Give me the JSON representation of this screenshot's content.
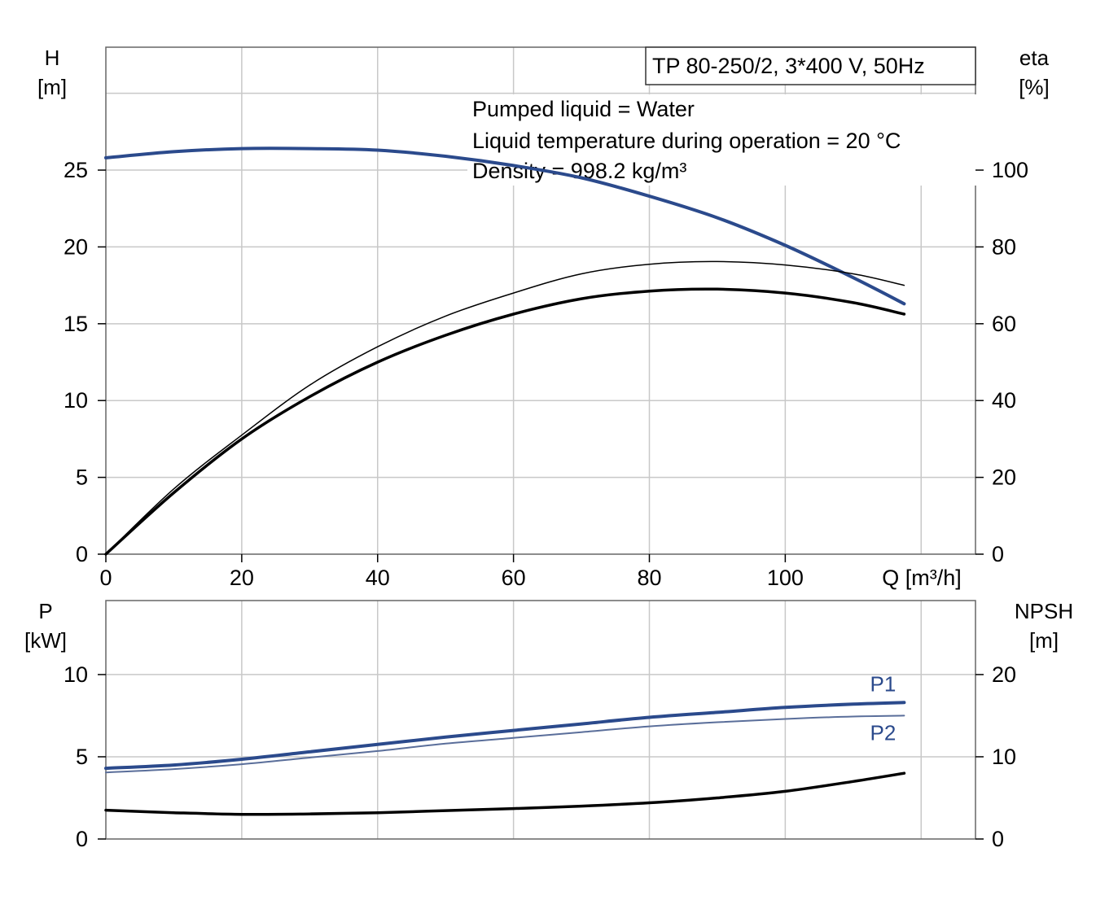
{
  "title_box": "TP 80-250/2, 3*400 V, 50Hz",
  "info_lines": [
    "Pumped liquid = Water",
    "Liquid temperature during operation = 20 °C",
    "Density = 998.2 kg/m³"
  ],
  "colors": {
    "blue": "#2b4a8c",
    "black": "#000000",
    "grid": "#c8c8c8",
    "thin": "#5a6e9a"
  },
  "chart_data": [
    {
      "type": "line",
      "x_axis": {
        "label": "Q [m³/h]",
        "range": [
          0,
          128
        ],
        "ticks": [
          "0",
          "20",
          "40",
          "60",
          "80",
          "100"
        ]
      },
      "y_left": {
        "label_line1": "H",
        "label_line2": "[m]",
        "range": [
          0,
          33
        ],
        "ticks": [
          "0",
          "5",
          "10",
          "15",
          "20",
          "25"
        ]
      },
      "y_right": {
        "label_line1": "eta",
        "label_line2": "[%]",
        "range": [
          0,
          132
        ],
        "ticks": [
          "0",
          "20",
          "40",
          "60",
          "80",
          "100"
        ]
      },
      "grid": true,
      "series": [
        {
          "axis": "left",
          "color": "blue",
          "width": 4,
          "x": [
            0,
            10,
            20,
            30,
            40,
            50,
            60,
            70,
            80,
            90,
            100,
            110,
            117.5
          ],
          "y": [
            25.8,
            26.2,
            26.4,
            26.4,
            26.3,
            25.9,
            25.3,
            24.5,
            23.3,
            21.9,
            20.1,
            18.0,
            16.3
          ]
        },
        {
          "axis": "right",
          "color": "black",
          "width": 1.5,
          "x": [
            0,
            10,
            20,
            30,
            40,
            50,
            60,
            70,
            80,
            90,
            100,
            110,
            117.5
          ],
          "y": [
            0,
            17,
            31,
            44,
            54,
            62,
            68,
            73,
            75.5,
            76.2,
            75.3,
            73,
            70
          ]
        },
        {
          "axis": "right",
          "color": "black",
          "width": 3.5,
          "x": [
            0,
            10,
            20,
            30,
            40,
            50,
            60,
            70,
            80,
            90,
            100,
            110,
            117.5
          ],
          "y": [
            0,
            16,
            30,
            41,
            50,
            57,
            62.5,
            66.5,
            68.5,
            69,
            68,
            65.5,
            62.5
          ]
        }
      ]
    },
    {
      "type": "line",
      "x_axis": {
        "range": [
          0,
          128
        ]
      },
      "y_left": {
        "label_line1": "P",
        "label_line2": "[kW]",
        "range": [
          0,
          14.5
        ],
        "ticks": [
          "0",
          "5",
          "10"
        ]
      },
      "y_right": {
        "label_line1": "NPSH",
        "label_line2": "[m]",
        "range": [
          0,
          29
        ],
        "ticks": [
          "0",
          "10",
          "20"
        ]
      },
      "grid": true,
      "series": [
        {
          "name": "P1",
          "axis": "left",
          "color": "blue",
          "width": 4,
          "x": [
            0,
            10,
            20,
            30,
            40,
            50,
            60,
            70,
            80,
            90,
            100,
            110,
            117.5
          ],
          "y": [
            4.3,
            4.5,
            4.85,
            5.3,
            5.75,
            6.2,
            6.6,
            7.0,
            7.4,
            7.7,
            8.0,
            8.2,
            8.3
          ]
        },
        {
          "name": "P2",
          "axis": "left",
          "color": "thin",
          "width": 2,
          "x": [
            0,
            10,
            20,
            30,
            40,
            50,
            60,
            70,
            80,
            90,
            100,
            110,
            117.5
          ],
          "y": [
            4.05,
            4.25,
            4.55,
            4.95,
            5.35,
            5.8,
            6.15,
            6.5,
            6.85,
            7.1,
            7.3,
            7.45,
            7.5
          ]
        },
        {
          "axis": "right",
          "color": "black",
          "width": 3.5,
          "x": [
            0,
            10,
            20,
            30,
            40,
            50,
            60,
            70,
            80,
            90,
            100,
            110,
            117.5
          ],
          "y": [
            3.5,
            3.2,
            3.0,
            3.05,
            3.2,
            3.45,
            3.7,
            4.0,
            4.4,
            5.0,
            5.8,
            7.0,
            8.0
          ]
        }
      ]
    }
  ]
}
